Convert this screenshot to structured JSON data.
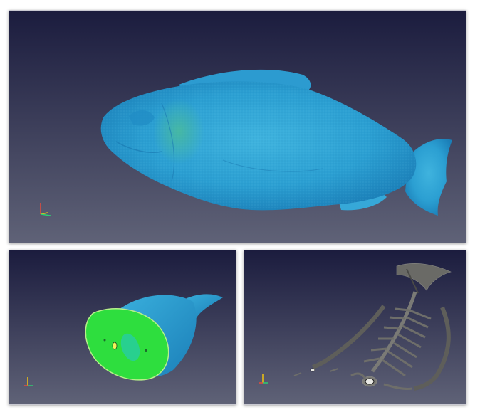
{
  "panels": [
    {
      "name": "fish-surface-render",
      "mesh_color": "#2f9fd6"
    },
    {
      "name": "fish-cross-section-render",
      "section_color": "#2ede3e"
    },
    {
      "name": "fish-skeleton-render",
      "bone_color": "#6a6a66"
    }
  ],
  "axes": {
    "x_label": "x",
    "y_label": "y",
    "z_label": "z"
  },
  "colors": {
    "background_top": "#1c1d3f",
    "background_bottom": "#5d6075",
    "axis_x": "#e74c3c",
    "axis_y": "#f1c40f",
    "axis_z": "#2ecc71"
  }
}
